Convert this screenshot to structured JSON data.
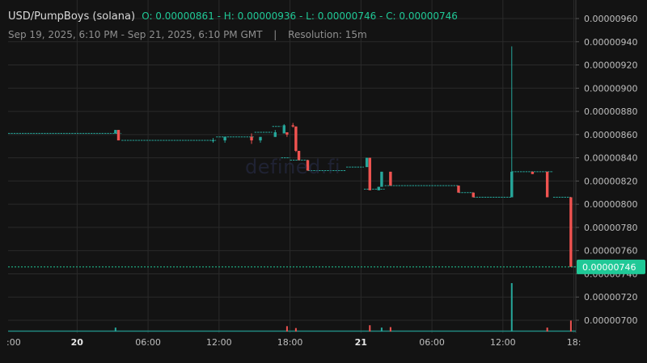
{
  "header": {
    "pair": "USD/PumpBoys (solana)",
    "ohlc": "O: 0.00000861 - H: 0.00000936 - L: 0.00000746 - C: 0.00000746",
    "range": "Sep 19, 2025, 6:10 PM - Sep 21, 2025, 6:10 PM GMT",
    "separator": "|",
    "resolution": "Resolution: 15m"
  },
  "watermark": "defined.fi",
  "colors": {
    "background": "#131313",
    "grid": "#2a2a2a",
    "up": "#26a69a",
    "down": "#ef5350",
    "price_line": "#20c997",
    "axis_text": "#bfbfbf"
  },
  "chart_data": {
    "type": "candlestick",
    "resolution": "15m",
    "x_ticks": [
      ":00",
      "20",
      "06:00",
      "12:00",
      "18:00",
      "21",
      "06:00",
      "12:00",
      "18:"
    ],
    "y_ticks": [
      "0.00000700",
      "0.00000720",
      "0.00000740",
      "0.00000760",
      "0.00000780",
      "0.00000800",
      "0.00000820",
      "0.00000840",
      "0.00000860",
      "0.00000880",
      "0.00000900",
      "0.00000920",
      "0.00000940",
      "0.00000960"
    ],
    "ylim": [
      6.9e-06,
      9.7e-06
    ],
    "last_price": 7.46e-06,
    "last_price_label": "0.00000746",
    "segments": [
      {
        "start": "2025-09-19 18:10",
        "end": "2025-09-20 03:45",
        "price": 8.61e-06
      },
      {
        "start": "2025-09-20 03:45",
        "end": "2025-09-20 11:45",
        "price": 8.55e-06
      },
      {
        "start": "2025-09-20 11:45",
        "end": "2025-09-20 15:00",
        "price": 8.58e-06
      },
      {
        "start": "2025-09-20 15:00",
        "end": "2025-09-20 16:30",
        "price": 8.62e-06
      },
      {
        "start": "2025-09-20 16:30",
        "end": "2025-09-20 17:15",
        "price": 8.67e-06
      },
      {
        "start": "2025-09-20 17:15",
        "end": "2025-09-20 18:00",
        "price": 8.4e-06
      },
      {
        "start": "2025-09-20 18:00",
        "end": "2025-09-20 19:30",
        "price": 8.38e-06
      },
      {
        "start": "2025-09-20 19:30",
        "end": "2025-09-20 22:45",
        "price": 8.29e-06
      },
      {
        "start": "2025-09-20 22:45",
        "end": "2025-09-21 00:15",
        "price": 8.32e-06
      },
      {
        "start": "2025-09-21 00:15",
        "end": "2025-09-21 02:00",
        "price": 8.13e-06
      },
      {
        "start": "2025-09-21 02:00",
        "end": "2025-09-21 08:15",
        "price": 8.16e-06
      },
      {
        "start": "2025-09-21 08:15",
        "end": "2025-09-21 09:30",
        "price": 8.1e-06
      },
      {
        "start": "2025-09-21 09:30",
        "end": "2025-09-21 12:45",
        "price": 8.06e-06
      },
      {
        "start": "2025-09-21 12:45",
        "end": "2025-09-21 16:15",
        "price": 8.28e-06
      },
      {
        "start": "2025-09-21 16:15",
        "end": "2025-09-21 17:45",
        "price": 8.06e-06
      },
      {
        "start": "2025-09-21 17:45",
        "end": "2025-09-21 18:10",
        "price": 7.46e-06
      }
    ],
    "candles": [
      {
        "time": "2025-09-20 03:15",
        "open": 8.61e-06,
        "high": 8.64e-06,
        "low": 8.61e-06,
        "close": 8.64e-06
      },
      {
        "time": "2025-09-20 03:30",
        "open": 8.64e-06,
        "high": 8.64e-06,
        "low": 8.55e-06,
        "close": 8.55e-06
      },
      {
        "time": "2025-09-20 11:30",
        "open": 8.55e-06,
        "high": 8.57e-06,
        "low": 8.53e-06,
        "close": 8.55e-06
      },
      {
        "time": "2025-09-20 12:30",
        "open": 8.55e-06,
        "high": 8.58e-06,
        "low": 8.53e-06,
        "close": 8.58e-06
      },
      {
        "time": "2025-09-20 14:45",
        "open": 8.58e-06,
        "high": 8.61e-06,
        "low": 8.52e-06,
        "close": 8.55e-06
      },
      {
        "time": "2025-09-20 15:30",
        "open": 8.55e-06,
        "high": 8.58e-06,
        "low": 8.53e-06,
        "close": 8.58e-06
      },
      {
        "time": "2025-09-20 16:45",
        "open": 8.58e-06,
        "high": 8.64e-06,
        "low": 8.58e-06,
        "close": 8.62e-06
      },
      {
        "time": "2025-09-20 17:45",
        "open": 8.62e-06,
        "high": 8.62e-06,
        "low": 8.58e-06,
        "close": 8.6e-06
      },
      {
        "time": "2025-09-20 17:30",
        "open": 8.61e-06,
        "high": 8.69e-06,
        "low": 8.61e-06,
        "close": 8.68e-06
      },
      {
        "time": "2025-09-20 18:15",
        "open": 8.68e-06,
        "high": 8.7e-06,
        "low": 8.66e-06,
        "close": 8.67e-06
      },
      {
        "time": "2025-09-20 18:30",
        "open": 8.67e-06,
        "high": 8.67e-06,
        "low": 8.45e-06,
        "close": 8.46e-06
      },
      {
        "time": "2025-09-20 18:45",
        "open": 8.46e-06,
        "high": 8.46e-06,
        "low": 8.38e-06,
        "close": 8.38e-06
      },
      {
        "time": "2025-09-20 19:30",
        "open": 8.38e-06,
        "high": 8.38e-06,
        "low": 8.29e-06,
        "close": 8.29e-06
      },
      {
        "time": "2025-09-21 00:30",
        "open": 8.32e-06,
        "high": 8.4e-06,
        "low": 8.32e-06,
        "close": 8.4e-06
      },
      {
        "time": "2025-09-21 00:45",
        "open": 8.4e-06,
        "high": 8.4e-06,
        "low": 8.12e-06,
        "close": 8.12e-06
      },
      {
        "time": "2025-09-21 01:30",
        "open": 8.12e-06,
        "high": 8.15e-06,
        "low": 8.12e-06,
        "close": 8.15e-06
      },
      {
        "time": "2025-09-21 01:45",
        "open": 8.15e-06,
        "high": 8.28e-06,
        "low": 8.15e-06,
        "close": 8.28e-06
      },
      {
        "time": "2025-09-21 02:30",
        "open": 8.28e-06,
        "high": 8.28e-06,
        "low": 8.16e-06,
        "close": 8.16e-06
      },
      {
        "time": "2025-09-21 08:15",
        "open": 8.16e-06,
        "high": 8.16e-06,
        "low": 8.1e-06,
        "close": 8.1e-06
      },
      {
        "time": "2025-09-21 09:30",
        "open": 8.1e-06,
        "high": 8.1e-06,
        "low": 8.06e-06,
        "close": 8.06e-06
      },
      {
        "time": "2025-09-21 12:45",
        "open": 8.06e-06,
        "high": 9.36e-06,
        "low": 8.06e-06,
        "close": 8.28e-06
      },
      {
        "time": "2025-09-21 14:30",
        "open": 8.28e-06,
        "high": 8.28e-06,
        "low": 8.26e-06,
        "close": 8.26e-06
      },
      {
        "time": "2025-09-21 15:45",
        "open": 8.28e-06,
        "high": 8.28e-06,
        "low": 8.06e-06,
        "close": 8.06e-06
      },
      {
        "time": "2025-09-21 17:45",
        "open": 8.06e-06,
        "high": 8.06e-06,
        "low": 7.46e-06,
        "close": 7.46e-06
      }
    ],
    "volume_spikes": [
      {
        "time": "2025-09-20 03:15",
        "ratio": 0.05,
        "direction": "up"
      },
      {
        "time": "2025-09-20 17:45",
        "ratio": 0.08,
        "direction": "down"
      },
      {
        "time": "2025-09-20 18:30",
        "ratio": 0.04,
        "direction": "down"
      },
      {
        "time": "2025-09-21 00:45",
        "ratio": 0.1,
        "direction": "down"
      },
      {
        "time": "2025-09-21 01:45",
        "ratio": 0.05,
        "direction": "up"
      },
      {
        "time": "2025-09-21 02:30",
        "ratio": 0.06,
        "direction": "down"
      },
      {
        "time": "2025-09-21 12:45",
        "ratio": 1.0,
        "direction": "up"
      },
      {
        "time": "2025-09-21 15:45",
        "ratio": 0.05,
        "direction": "down"
      },
      {
        "time": "2025-09-21 17:45",
        "ratio": 0.2,
        "direction": "down"
      }
    ]
  }
}
